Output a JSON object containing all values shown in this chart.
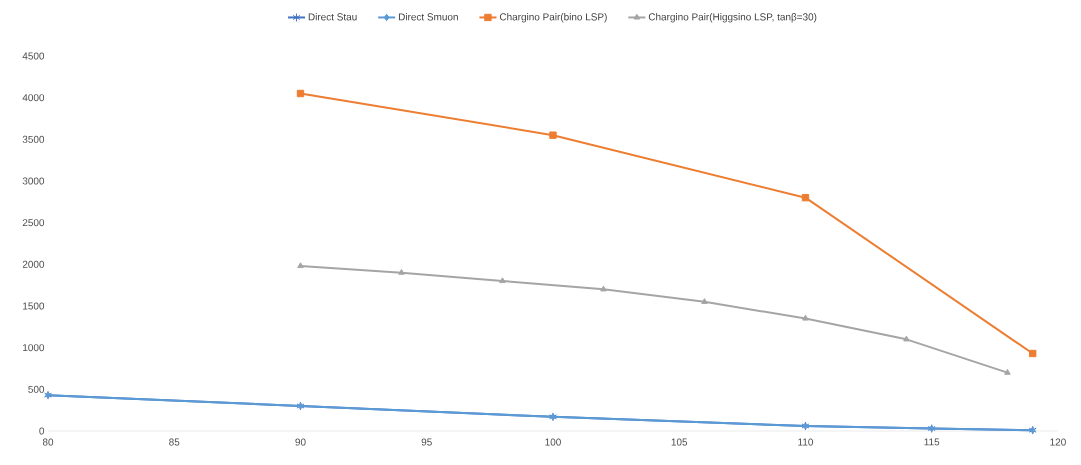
{
  "chart_data": {
    "type": "line",
    "xlim": [
      80,
      120
    ],
    "xticks": [
      80,
      85,
      90,
      95,
      100,
      105,
      110,
      115,
      120
    ],
    "ylim": [
      0,
      4500
    ],
    "yticks": [
      0,
      500,
      1000,
      1500,
      2000,
      2500,
      3000,
      3500,
      4000,
      4500
    ],
    "grid": false,
    "legend": "top",
    "series": [
      {
        "name": "Direct Stau",
        "color": "#4472c4",
        "marker": "cross",
        "x": [
          80,
          90,
          100,
          110,
          115,
          119
        ],
        "values": [
          430,
          300,
          170,
          60,
          30,
          10
        ]
      },
      {
        "name": "Direct Smuon",
        "color": "#5b9bd5",
        "marker": "diamond",
        "x": [
          80,
          90,
          100,
          110,
          115,
          119
        ],
        "values": [
          430,
          300,
          170,
          60,
          30,
          10
        ]
      },
      {
        "name": "Chargino Pair(bino LSP)",
        "color": "#ed7d31",
        "marker": "square",
        "x": [
          90,
          100,
          110,
          119
        ],
        "values": [
          4050,
          3550,
          2800,
          930
        ]
      },
      {
        "name": "Chargino Pair(Higgsino LSP, tanβ=30)",
        "color": "#a5a5a5",
        "marker": "triangle",
        "x": [
          90,
          94,
          98,
          102,
          106,
          110,
          114,
          118
        ],
        "values": [
          1980,
          1900,
          1800,
          1700,
          1550,
          1350,
          1100,
          700
        ]
      }
    ]
  }
}
